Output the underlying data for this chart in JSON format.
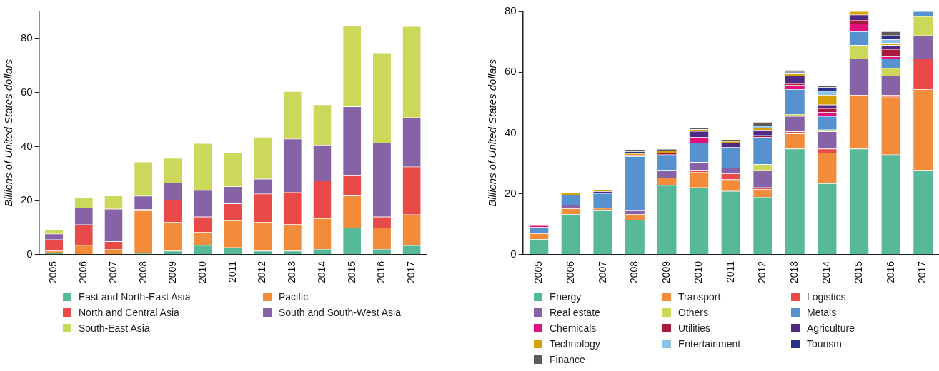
{
  "chart_data": [
    {
      "type": "bar",
      "stacked": true,
      "ylabel": "Billions of United States dollars",
      "categories": [
        "2005",
        "2006",
        "2007",
        "2008",
        "2009",
        "2010",
        "2011",
        "2012",
        "2013",
        "2014",
        "2015",
        "2016",
        "2017"
      ],
      "ylim": [
        0,
        90
      ],
      "yticks": [
        0,
        20,
        40,
        60,
        80
      ],
      "legend": "bottom",
      "grid": false,
      "series": [
        {
          "name": "East and North-East Asia",
          "color": "#55b99a",
          "values": [
            0.7,
            0,
            0,
            0.6,
            1.4,
            3.5,
            2.7,
            1.4,
            1.4,
            2.1,
            9.9,
            2.1,
            3.4
          ]
        },
        {
          "name": "Pacific",
          "color": "#f28b3a",
          "values": [
            0.7,
            3.5,
            2.1,
            15.6,
            10.6,
            4.9,
            9.9,
            10.6,
            9.8,
            11.3,
            11.9,
            7.8,
            11.4
          ]
        },
        {
          "name": "North and Central Asia",
          "color": "#e84b47",
          "values": [
            4.2,
            7.6,
            2.8,
            0.6,
            8.3,
            5.6,
            6.3,
            10.5,
            12,
            13.9,
            7.6,
            4.1,
            17.7
          ]
        },
        {
          "name": "South and South-West Asia",
          "color": "#8663a7",
          "values": [
            2.1,
            6.3,
            12,
            4.9,
            6.3,
            9.8,
            6.3,
            5.5,
            19.6,
            13.3,
            25.4,
            27.3,
            18.2
          ]
        },
        {
          "name": "South-East Asia",
          "color": "#ccd85a",
          "values": [
            1.4,
            3.6,
            4.9,
            12.6,
            9.1,
            17.4,
            12.5,
            15.5,
            17.6,
            14.9,
            29.8,
            33.4,
            33.8
          ]
        }
      ]
    },
    {
      "type": "bar",
      "stacked": true,
      "ylabel": "Billions of United States dollars",
      "categories": [
        "2005",
        "2006",
        "2007",
        "2008",
        "2009",
        "2010",
        "2011",
        "2012",
        "2013",
        "2014",
        "2015",
        "2016",
        "2017"
      ],
      "ylim": [
        0,
        80
      ],
      "yticks": [
        0,
        20,
        40,
        60,
        80
      ],
      "legend": "bottom",
      "grid": false,
      "series": [
        {
          "name": "Energy",
          "color": "#55b99a",
          "values": [
            5.1,
            13.3,
            14.5,
            11.4,
            22.8,
            22.1,
            20.9,
            19.0,
            34.8,
            23.4,
            34.8,
            32.9,
            27.8
          ]
        },
        {
          "name": "Transport",
          "color": "#f28b3a",
          "values": [
            1.9,
            1.8,
            0.8,
            1.9,
            2.4,
            5.1,
            3.8,
            2.5,
            5.0,
            10.1,
            17.7,
            19.0,
            26.6
          ]
        },
        {
          "name": "Logistics",
          "color": "#e84b47",
          "values": [
            0,
            0,
            0,
            0,
            0,
            0.6,
            1.9,
            0.6,
            0.7,
            1.3,
            0,
            0.6,
            10.1
          ]
        },
        {
          "name": "Real estate",
          "color": "#8663a7",
          "values": [
            0,
            1.3,
            0,
            1.2,
            2.6,
            2.6,
            1.9,
            5.6,
            5.0,
            5.7,
            12.0,
            6.3,
            7.6
          ]
        },
        {
          "name": "Others",
          "color": "#ccd85a",
          "values": [
            0,
            0,
            0,
            0,
            0,
            0,
            0,
            2.0,
            0.7,
            0.6,
            4.4,
            2.5,
            6.3
          ]
        },
        {
          "name": "Metals",
          "color": "#5592cf",
          "values": [
            2.0,
            3.2,
            4.9,
            17.8,
            5.1,
            6.3,
            6.8,
            8.9,
            8.2,
            4.4,
            4.5,
            3.2,
            1.6
          ]
        },
        {
          "name": "Chemicals",
          "color": "#e2107a",
          "values": [
            0.6,
            0,
            0,
            0.5,
            0,
            1.9,
            0,
            0,
            1.3,
            1.3,
            2.5,
            0.6,
            null
          ]
        },
        {
          "name": "Utilities",
          "color": "#a8193f",
          "values": [
            0,
            0,
            0,
            0,
            0.6,
            0,
            0,
            0.6,
            0.6,
            1.3,
            1.3,
            2.5,
            null
          ]
        },
        {
          "name": "Agriculture",
          "color": "#4f2a87",
          "values": [
            0,
            0,
            0.6,
            0,
            0,
            2.0,
            1.4,
            1.8,
            2.5,
            1.2,
            1.7,
            1.3,
            null
          ]
        },
        {
          "name": "Technology",
          "color": "#d6a105",
          "values": [
            0,
            0.7,
            0.6,
            0.5,
            0.7,
            0.6,
            0.6,
            0.7,
            0.7,
            3.2,
            1.1,
            0.7,
            null
          ]
        },
        {
          "name": "Entertainment",
          "color": "#8cc4e8",
          "values": [
            0,
            0,
            0,
            0,
            0,
            0,
            0,
            0.6,
            0,
            1.3,
            null,
            1.2,
            null
          ]
        },
        {
          "name": "Tourism",
          "color": "#2b2f86",
          "values": [
            0,
            0,
            0,
            0.6,
            0,
            0,
            0,
            0,
            0.6,
            1.2,
            null,
            1.3,
            null
          ]
        },
        {
          "name": "Finance",
          "color": "#5f5a5a",
          "values": [
            0,
            0,
            0,
            0.7,
            0.5,
            0.5,
            0.6,
            1.3,
            0.6,
            0.7,
            null,
            1.3,
            null
          ]
        }
      ]
    }
  ]
}
